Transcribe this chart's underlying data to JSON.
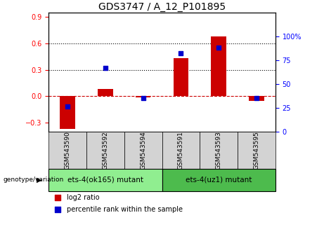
{
  "title": "GDS3747 / A_12_P101895",
  "categories": [
    "GSM543590",
    "GSM543592",
    "GSM543594",
    "GSM543591",
    "GSM543593",
    "GSM543595"
  ],
  "log2_ratio": [
    -0.37,
    0.08,
    -0.01,
    0.43,
    0.68,
    -0.05
  ],
  "percentile_rank": [
    26,
    67,
    35,
    82,
    88,
    35
  ],
  "ylim_left": [
    -0.4,
    0.95
  ],
  "ylim_right": [
    0,
    125
  ],
  "yticks_left": [
    -0.3,
    0.0,
    0.3,
    0.6,
    0.9
  ],
  "yticks_right": [
    0,
    25,
    50,
    75,
    100
  ],
  "bar_color": "#cc0000",
  "dot_color": "#0000cc",
  "zero_line_color": "#cc0000",
  "gridline_color": "#000000",
  "group1_label": "ets-4(ok165) mutant",
  "group2_label": "ets-4(uz1) mutant",
  "group1_indices": [
    0,
    1,
    2
  ],
  "group2_indices": [
    3,
    4,
    5
  ],
  "group1_color": "#90ee90",
  "group2_color": "#4dbb4d",
  "genotype_label": "genotype/variation",
  "legend_bar_label": "log2 ratio",
  "legend_dot_label": "percentile rank within the sample",
  "title_fontsize": 10,
  "tick_fontsize": 7,
  "label_fontsize": 6.5,
  "group_fontsize": 7.5,
  "legend_fontsize": 7
}
